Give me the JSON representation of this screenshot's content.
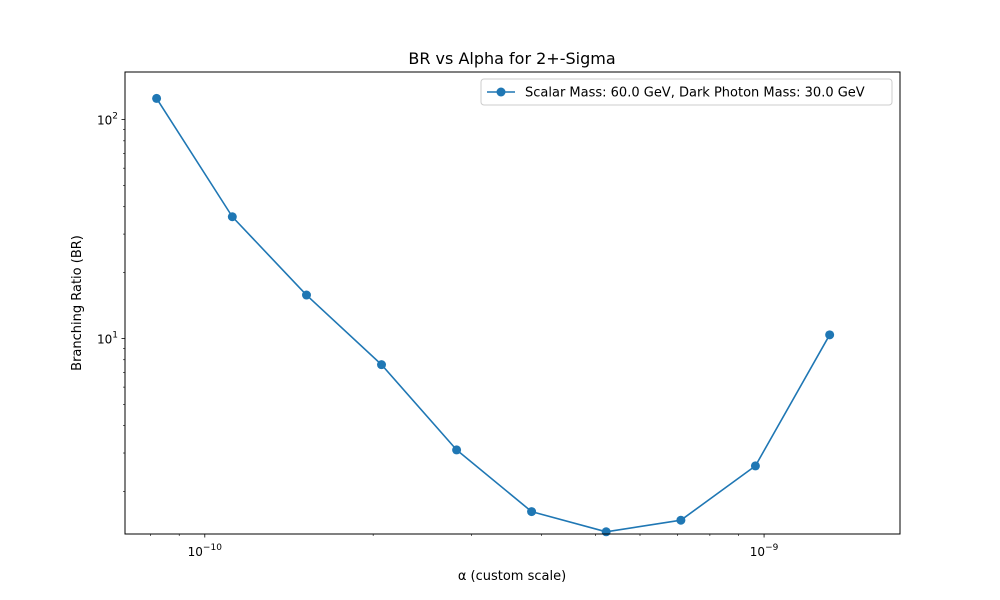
{
  "chart_data": {
    "type": "line",
    "title": "BR vs Alpha for 2+-Sigma",
    "xlabel": "α (custom scale)",
    "ylabel": "Branching Ratio (BR)",
    "xscale": "log",
    "yscale": "log",
    "xlim": [
      7.2e-11,
      1.75e-09
    ],
    "ylim": [
      1.28,
      165
    ],
    "x_ticks": [
      {
        "value": 1e-10,
        "base": "10",
        "exp": "−10"
      },
      {
        "value": 1e-09,
        "base": "10",
        "exp": "−9"
      }
    ],
    "y_ticks": [
      {
        "value": 10,
        "base": "10",
        "exp": "1"
      },
      {
        "value": 100,
        "base": "10",
        "exp": "2"
      }
    ],
    "grid": false,
    "legend_position": "top-right",
    "color": "#1f77b4",
    "series": [
      {
        "name": "Scalar Mass: 60.0 GeV, Dark Photon Mass: 30.0 GeV",
        "x": [
          8.2e-11,
          1.12e-10,
          1.52e-10,
          2.07e-10,
          2.82e-10,
          3.84e-10,
          5.22e-10,
          7.1e-10,
          9.65e-10,
          1.31e-09
        ],
        "y": [
          125,
          36,
          15.8,
          7.6,
          3.1,
          1.62,
          1.31,
          1.48,
          2.62,
          10.4
        ]
      }
    ]
  }
}
